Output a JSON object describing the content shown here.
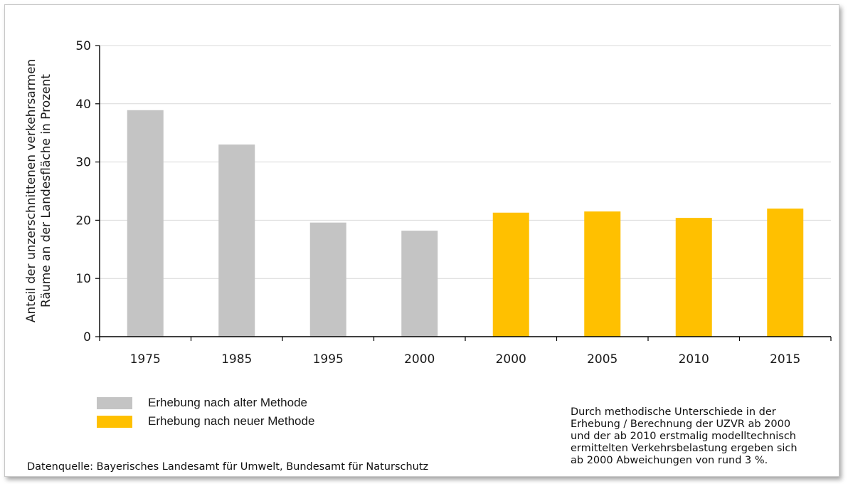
{
  "chart_data": {
    "type": "bar",
    "categories": [
      "1975",
      "1985",
      "1995",
      "2000",
      "2000",
      "2005",
      "2010",
      "2015"
    ],
    "values": [
      38.9,
      33.0,
      19.6,
      18.2,
      21.3,
      21.5,
      20.4,
      22.0
    ],
    "method": [
      "old",
      "old",
      "old",
      "old",
      "new",
      "new",
      "new",
      "new"
    ],
    "ylim": [
      0,
      50
    ],
    "yticks": [
      0,
      10,
      20,
      30,
      40,
      50
    ],
    "ylabel_line1": "Anteil der unzerschnittenen verkehrsarmen",
    "ylabel_line2": "Räume an der Landesfläche in Prozent",
    "xlabel": "",
    "grid": true,
    "legend": [
      {
        "label": "Erhebung nach alter Methode",
        "color": "#c4c4c4"
      },
      {
        "label": "Erhebung nach neuer Methode",
        "color": "#ffc000"
      }
    ],
    "colors": {
      "old": "#c4c4c4",
      "new": "#ffc000"
    }
  },
  "note": "Durch methodische Unterschiede in der\nErhebung / Berechnung der UZVR ab 2000\nund der ab 2010 erstmalig modelltechnisch\nermittelten Verkehrsbelastung ergeben sich\nab 2000 Abweichungen von rund 3 %.",
  "source": "Datenquelle:  Bayerisches Landesamt für Umwelt, Bundesamt für Naturschutz"
}
